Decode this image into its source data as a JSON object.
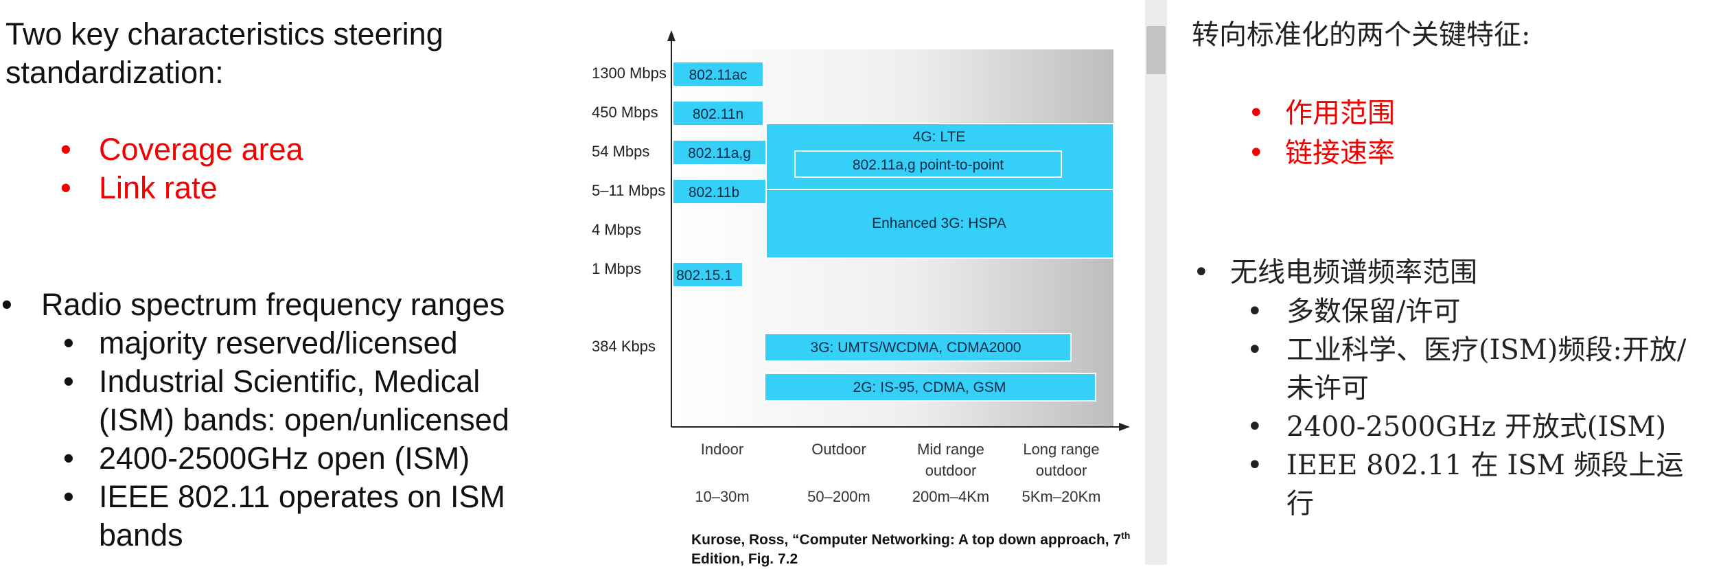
{
  "left": {
    "heading": "Two key characteristics steering standardization:",
    "red_bullets": [
      "Coverage area",
      "Link rate"
    ],
    "bullet": "Radio spectrum frequency ranges",
    "sub_bullets": [
      "majority reserved/licensed",
      "Industrial Scientific, Medical (ISM) bands: open/unlicensed",
      "2400-2500GHz open (ISM)",
      "IEEE 802.11 operates on ISM bands"
    ]
  },
  "figure": {
    "caption_main": "Kurose, Ross, “Computer Networking: A top down approach, 7",
    "caption_sup": "th",
    "caption_end": " Edition, Fig. 7.2"
  },
  "chart_data": {
    "type": "bar",
    "y_tick_labels": [
      "1300 Mbps",
      "450 Mbps",
      "54 Mbps",
      "5–11 Mbps",
      "4 Mbps",
      "1 Mbps",
      "384 Kbps"
    ],
    "x_tick_labels": [
      {
        "name": "Indoor",
        "range": "10–30m"
      },
      {
        "name": "Outdoor",
        "range": "50–200m"
      },
      {
        "name": "Mid range outdoor",
        "range": "200m–4Km"
      },
      {
        "name": "Long range outdoor",
        "range": "5Km–20Km"
      }
    ],
    "technologies": [
      {
        "label": "802.11ac",
        "rate": "1300 Mbps",
        "range_from": "Indoor",
        "range_to": "Indoor"
      },
      {
        "label": "802.11n",
        "rate": "450 Mbps",
        "range_from": "Indoor",
        "range_to": "Indoor"
      },
      {
        "label": "802.11a,g",
        "rate": "54 Mbps",
        "range_from": "Indoor",
        "range_to": "Indoor"
      },
      {
        "label": "802.11b",
        "rate": "5–11 Mbps",
        "range_from": "Indoor",
        "range_to": "Indoor"
      },
      {
        "label": "802.15.1",
        "rate": "1 Mbps",
        "range_from": "Indoor",
        "range_to": "Indoor"
      },
      {
        "label": "4G: LTE",
        "rate": "54 Mbps",
        "range_from": "Outdoor",
        "range_to": "Long range outdoor"
      },
      {
        "label": "802.11a,g point-to-point",
        "rate": "54 Mbps",
        "range_from": "Outdoor",
        "range_to": "Long range outdoor"
      },
      {
        "label": "Enhanced 3G: HSPA",
        "rate": "5–11 Mbps",
        "range_from": "Outdoor",
        "range_to": "Long range outdoor"
      },
      {
        "label": "3G: UMTS/WCDMA, CDMA2000",
        "rate": "384 Kbps",
        "range_from": "Outdoor",
        "range_to": "Long range outdoor"
      },
      {
        "label": "2G: IS-95, CDMA, GSM",
        "rate": "384 Kbps",
        "range_from": "Outdoor",
        "range_to": "Long range outdoor"
      }
    ],
    "colors": {
      "bar": "#36cff8",
      "bar_border": "#ffffff",
      "label": "#0b2b46"
    }
  },
  "right": {
    "heading": "转向标准化的两个关键特征:",
    "red_bullets": [
      "作用范围",
      "链接速率"
    ],
    "bullet": "无线电频谱频率范围",
    "sub_bullets": [
      "多数保留/许可",
      "工业科学、医疗(ISM)频段:开放/未许可",
      "2400-2500GHz 开放式(ISM)",
      "IEEE 802.11 在 ISM 频段上运行"
    ]
  },
  "colors": {
    "accent_red": "#f20000",
    "scrollbar_track": "#ececec",
    "scrollbar_thumb": "#c4c4c4"
  }
}
